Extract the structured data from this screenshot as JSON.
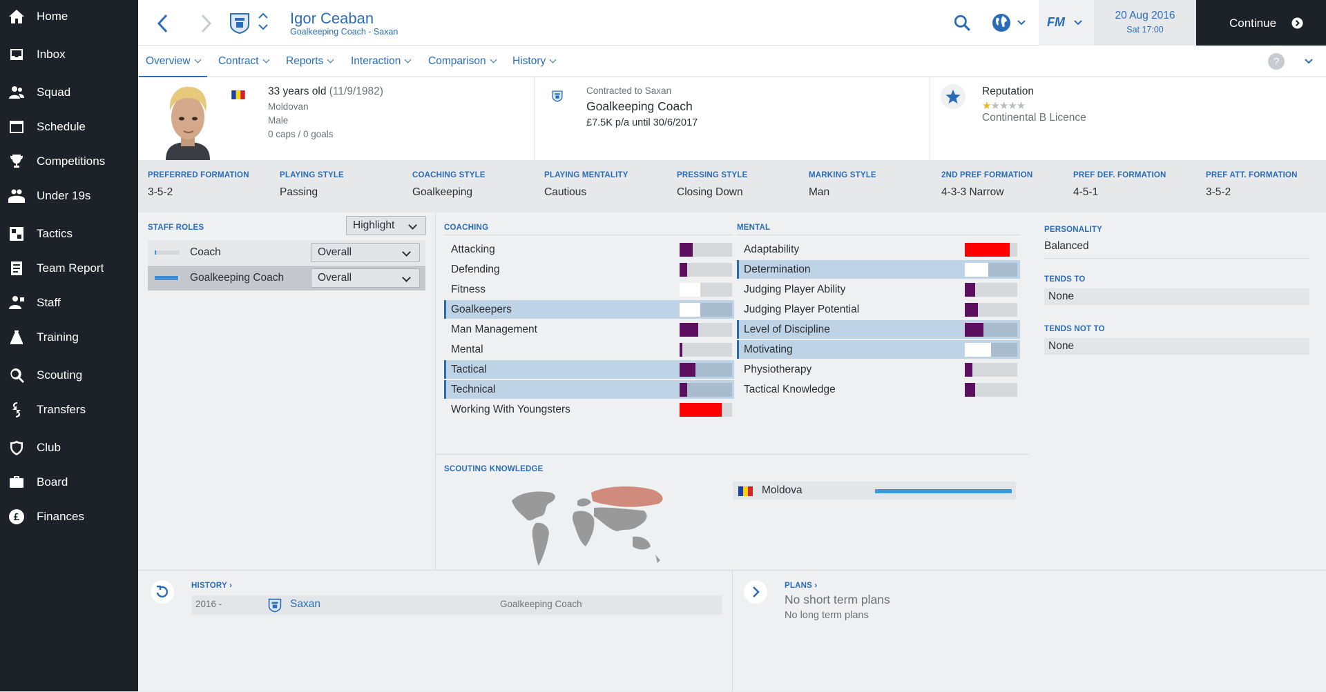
{
  "sidebar": {
    "items": [
      {
        "label": "Home",
        "icon": "home-icon"
      },
      {
        "label": "Inbox",
        "icon": "inbox-icon"
      },
      {
        "label": "Squad",
        "icon": "squad-icon"
      },
      {
        "label": "Schedule",
        "icon": "calendar-icon"
      },
      {
        "label": "Competitions",
        "icon": "trophy-icon"
      },
      {
        "label": "Under 19s",
        "icon": "u19-icon"
      },
      {
        "label": "Tactics",
        "icon": "tactics-icon"
      },
      {
        "label": "Team Report",
        "icon": "report-icon"
      },
      {
        "label": "Staff",
        "icon": "staff-icon"
      },
      {
        "label": "Training",
        "icon": "training-icon"
      },
      {
        "label": "Scouting",
        "icon": "search-icon"
      },
      {
        "label": "Transfers",
        "icon": "transfers-icon"
      },
      {
        "label": "Club",
        "icon": "shield-icon"
      },
      {
        "label": "Board",
        "icon": "briefcase-icon"
      },
      {
        "label": "Finances",
        "icon": "pound-icon"
      }
    ]
  },
  "header": {
    "name": "Igor Ceaban",
    "subtitle": "Goalkeeping Coach - Saxan",
    "date": "20 Aug 2016",
    "time": "Sat 17:00",
    "continue_label": "Continue",
    "fm_label": "FM"
  },
  "tabs": [
    {
      "label": "Overview"
    },
    {
      "label": "Contract"
    },
    {
      "label": "Reports"
    },
    {
      "label": "Interaction"
    },
    {
      "label": "Comparison"
    },
    {
      "label": "History"
    }
  ],
  "profile": {
    "age": "33 years old",
    "dob": "(11/9/1982)",
    "nationality": "Moldovan",
    "gender": "Male",
    "caps": "0 caps / 0 goals",
    "contract_label": "Contracted to Saxan",
    "role": "Goalkeeping Coach",
    "wage": "£7.5K p/a until 30/6/2017",
    "reputation_label": "Reputation",
    "reputation_stars": 1,
    "licence": "Continental B Licence"
  },
  "styles": [
    {
      "label": "PREFERRED FORMATION",
      "value": "3-5-2"
    },
    {
      "label": "PLAYING STYLE",
      "value": "Passing"
    },
    {
      "label": "COACHING STYLE",
      "value": "Goalkeeping"
    },
    {
      "label": "PLAYING MENTALITY",
      "value": "Cautious"
    },
    {
      "label": "PRESSING STYLE",
      "value": "Closing Down"
    },
    {
      "label": "MARKING STYLE",
      "value": "Man"
    },
    {
      "label": "2ND PREF FORMATION",
      "value": "4-3-3 Narrow"
    },
    {
      "label": "PREF DEF. FORMATION",
      "value": "4-5-1"
    },
    {
      "label": "PREF ATT. FORMATION",
      "value": "3-5-2"
    }
  ],
  "roles": {
    "title": "STAFF ROLES",
    "highlight_label": "Highlight",
    "items": [
      {
        "label": "Coach",
        "dropdown": "Overall",
        "level": 0.05
      },
      {
        "label": "Goalkeeping Coach",
        "dropdown": "Overall",
        "level": 0.95
      }
    ]
  },
  "coaching": {
    "title": "COACHING",
    "items": [
      {
        "label": "Attacking",
        "value": 0.25,
        "color": "#5c0f5e",
        "hl": false
      },
      {
        "label": "Defending",
        "value": 0.15,
        "color": "#5c0f5e",
        "hl": false
      },
      {
        "label": "Fitness",
        "value": 0.4,
        "color": "#ffffff",
        "hl": false
      },
      {
        "label": "Goalkeepers",
        "value": 0.4,
        "color": "#ffffff",
        "hl": true
      },
      {
        "label": "Man Management",
        "value": 0.35,
        "color": "#5c0f5e",
        "hl": false
      },
      {
        "label": "Mental",
        "value": 0.05,
        "color": "#5c0f5e",
        "hl": false
      },
      {
        "label": "Tactical",
        "value": 0.3,
        "color": "#5c0f5e",
        "hl": true
      },
      {
        "label": "Technical",
        "value": 0.15,
        "color": "#5c0f5e",
        "hl": true
      },
      {
        "label": "Working With Youngsters",
        "value": 0.8,
        "color": "#ff0000",
        "hl": false
      }
    ]
  },
  "mental": {
    "title": "MENTAL",
    "items": [
      {
        "label": "Adaptability",
        "value": 0.85,
        "color": "#ff0000",
        "hl": false
      },
      {
        "label": "Determination",
        "value": 0.45,
        "color": "#ffffff",
        "hl": true
      },
      {
        "label": "Judging Player Ability",
        "value": 0.2,
        "color": "#5c0f5e",
        "hl": false
      },
      {
        "label": "Judging Player Potential",
        "value": 0.25,
        "color": "#5c0f5e",
        "hl": false
      },
      {
        "label": "Level of Discipline",
        "value": 0.35,
        "color": "#5c0f5e",
        "hl": true
      },
      {
        "label": "Motivating",
        "value": 0.5,
        "color": "#ffffff",
        "hl": true
      },
      {
        "label": "Physiotherapy",
        "value": 0.15,
        "color": "#5c0f5e",
        "hl": false
      },
      {
        "label": "Tactical Knowledge",
        "value": 0.2,
        "color": "#5c0f5e",
        "hl": false
      }
    ]
  },
  "personality": {
    "title": "PERSONALITY",
    "value": "Balanced",
    "tends_to_title": "TENDS TO",
    "tends_to": "None",
    "tends_not_title": "TENDS NOT TO",
    "tends_not": "None"
  },
  "scouting": {
    "title": "SCOUTING KNOWLEDGE",
    "country": "Moldova",
    "level": 1.0
  },
  "history": {
    "title": "HISTORY",
    "rows": [
      {
        "years": "2016 -",
        "club": "Saxan",
        "role": "Goalkeeping Coach"
      }
    ]
  },
  "plans": {
    "title": "PLANS",
    "short": "No short term plans",
    "long": "No long term plans"
  },
  "colors": {
    "accent": "#2a6cb8",
    "sidebar": "#1c2228",
    "bar_purple": "#5c0f5e",
    "bar_red": "#ff0000"
  }
}
